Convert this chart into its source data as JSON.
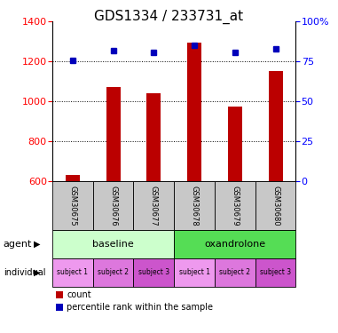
{
  "title": "GDS1334 / 233731_at",
  "samples": [
    "GSM30675",
    "GSM30676",
    "GSM30677",
    "GSM30678",
    "GSM30679",
    "GSM30680"
  ],
  "counts": [
    635,
    1072,
    1040,
    1295,
    975,
    1155
  ],
  "percentiles": [
    76,
    82,
    81,
    85,
    81,
    83
  ],
  "ylim_left": [
    600,
    1400
  ],
  "ylim_right": [
    0,
    100
  ],
  "yticks_left": [
    600,
    800,
    1000,
    1200,
    1400
  ],
  "yticks_right": [
    0,
    25,
    50,
    75,
    100
  ],
  "bar_color": "#BB0000",
  "dot_color": "#0000BB",
  "agent_groups": [
    {
      "label": "baseline",
      "span": [
        0,
        3
      ],
      "color": "#CCFFCC"
    },
    {
      "label": "oxandrolone",
      "span": [
        3,
        6
      ],
      "color": "#44CC44"
    }
  ],
  "individual_labels": [
    "subject 1",
    "subject 2",
    "subject 3",
    "subject 1",
    "subject 2",
    "subject 3"
  ],
  "individual_colors": [
    "#EE88EE",
    "#DD66DD",
    "#CC44CC",
    "#EE88EE",
    "#DD66DD",
    "#CC44CC"
  ],
  "legend_items": [
    "count",
    "percentile rank within the sample"
  ],
  "title_fontsize": 11,
  "tick_fontsize": 8,
  "bar_width": 0.35
}
